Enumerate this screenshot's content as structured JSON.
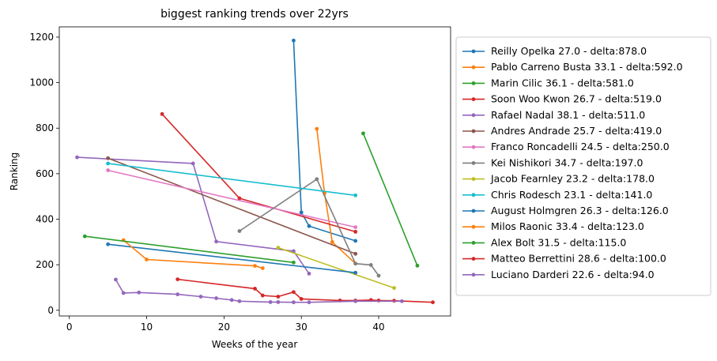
{
  "chart_data": {
    "type": "line",
    "title": "biggest ranking trends over 22yrs",
    "xlabel": "Weeks of the year",
    "ylabel": "Ranking",
    "xlim": [
      -1.3,
      49.3
    ],
    "ylim": [
      -25,
      1245
    ],
    "xticks": [
      0,
      10,
      20,
      30,
      40
    ],
    "yticks": [
      0,
      200,
      400,
      600,
      800,
      1000,
      1200
    ],
    "grid": false,
    "legend": "outside-right",
    "series": [
      {
        "name": "Reilly Opelka 27.0 - delta:878.0",
        "color": "#1f77b4",
        "points": [
          [
            29,
            1185
          ],
          [
            30,
            430
          ],
          [
            31,
            370
          ],
          [
            37,
            305
          ]
        ]
      },
      {
        "name": "Pablo Carreno Busta 33.1 - delta:592.0",
        "color": "#ff7f0e",
        "points": [
          [
            32,
            797
          ],
          [
            33,
            515
          ],
          [
            34,
            300
          ],
          [
            37,
            205
          ]
        ]
      },
      {
        "name": "Marin Cilic 36.1 - delta:581.0",
        "color": "#2ca02c",
        "points": [
          [
            38,
            777
          ],
          [
            45,
            196
          ]
        ]
      },
      {
        "name": "Soon Woo Kwon 26.7 - delta:519.0",
        "color": "#d62728",
        "points": [
          [
            12,
            862
          ],
          [
            22,
            492
          ],
          [
            37,
            345
          ]
        ]
      },
      {
        "name": "Rafael Nadal 38.1 - delta:511.0",
        "color": "#9467bd",
        "points": [
          [
            1,
            672
          ],
          [
            16,
            645
          ],
          [
            19,
            302
          ],
          [
            29,
            260
          ],
          [
            31,
            161
          ]
        ]
      },
      {
        "name": "Andres Andrade 25.7 - delta:419.0",
        "color": "#8c564b",
        "points": [
          [
            5,
            668
          ],
          [
            37,
            248
          ]
        ]
      },
      {
        "name": "Franco Roncadelli 24.5 - delta:250.0",
        "color": "#e377c2",
        "points": [
          [
            5,
            615
          ],
          [
            37,
            365
          ]
        ]
      },
      {
        "name": "Kei Nishikori 34.7 - delta:197.0",
        "color": "#7f7f7f",
        "points": [
          [
            22,
            348
          ],
          [
            32,
            576
          ],
          [
            37,
            205
          ],
          [
            39,
            199
          ],
          [
            40,
            152
          ]
        ]
      },
      {
        "name": "Jacob Fearnley 23.2 - delta:178.0",
        "color": "#bcbd22",
        "points": [
          [
            27,
            275
          ],
          [
            42,
            98
          ]
        ]
      },
      {
        "name": "Chris Rodesch 23.1 - delta:141.0",
        "color": "#17becf",
        "points": [
          [
            5,
            645
          ],
          [
            37,
            505
          ]
        ]
      },
      {
        "name": "August Holmgren 26.3 - delta:126.0",
        "color": "#1f77b4",
        "points": [
          [
            5,
            290
          ],
          [
            37,
            165
          ]
        ]
      },
      {
        "name": "Milos Raonic 33.4 - delta:123.0",
        "color": "#ff7f0e",
        "points": [
          [
            7,
            308
          ],
          [
            10,
            223
          ],
          [
            24,
            195
          ],
          [
            25,
            185
          ]
        ]
      },
      {
        "name": "Alex Bolt 31.5 - delta:115.0",
        "color": "#2ca02c",
        "points": [
          [
            2,
            325
          ],
          [
            29,
            210
          ]
        ]
      },
      {
        "name": "Matteo Berrettini 28.6 - delta:100.0",
        "color": "#d62728",
        "points": [
          [
            14,
            136
          ],
          [
            24,
            95
          ],
          [
            25,
            65
          ],
          [
            27,
            60
          ],
          [
            29,
            80
          ],
          [
            30,
            50
          ],
          [
            35,
            43
          ],
          [
            37,
            43
          ],
          [
            39,
            45
          ],
          [
            40,
            43
          ],
          [
            42,
            42
          ],
          [
            47,
            35
          ]
        ]
      },
      {
        "name": "Luciano Darderi 22.6 - delta:94.0",
        "color": "#9467bd",
        "points": [
          [
            6,
            135
          ],
          [
            7,
            76
          ],
          [
            9,
            78
          ],
          [
            14,
            70
          ],
          [
            17,
            60
          ],
          [
            19,
            53
          ],
          [
            21,
            45
          ],
          [
            22,
            40
          ],
          [
            26,
            36
          ],
          [
            27,
            36
          ],
          [
            29,
            35
          ],
          [
            31,
            35
          ],
          [
            37,
            40
          ],
          [
            43,
            40
          ]
        ]
      }
    ]
  }
}
